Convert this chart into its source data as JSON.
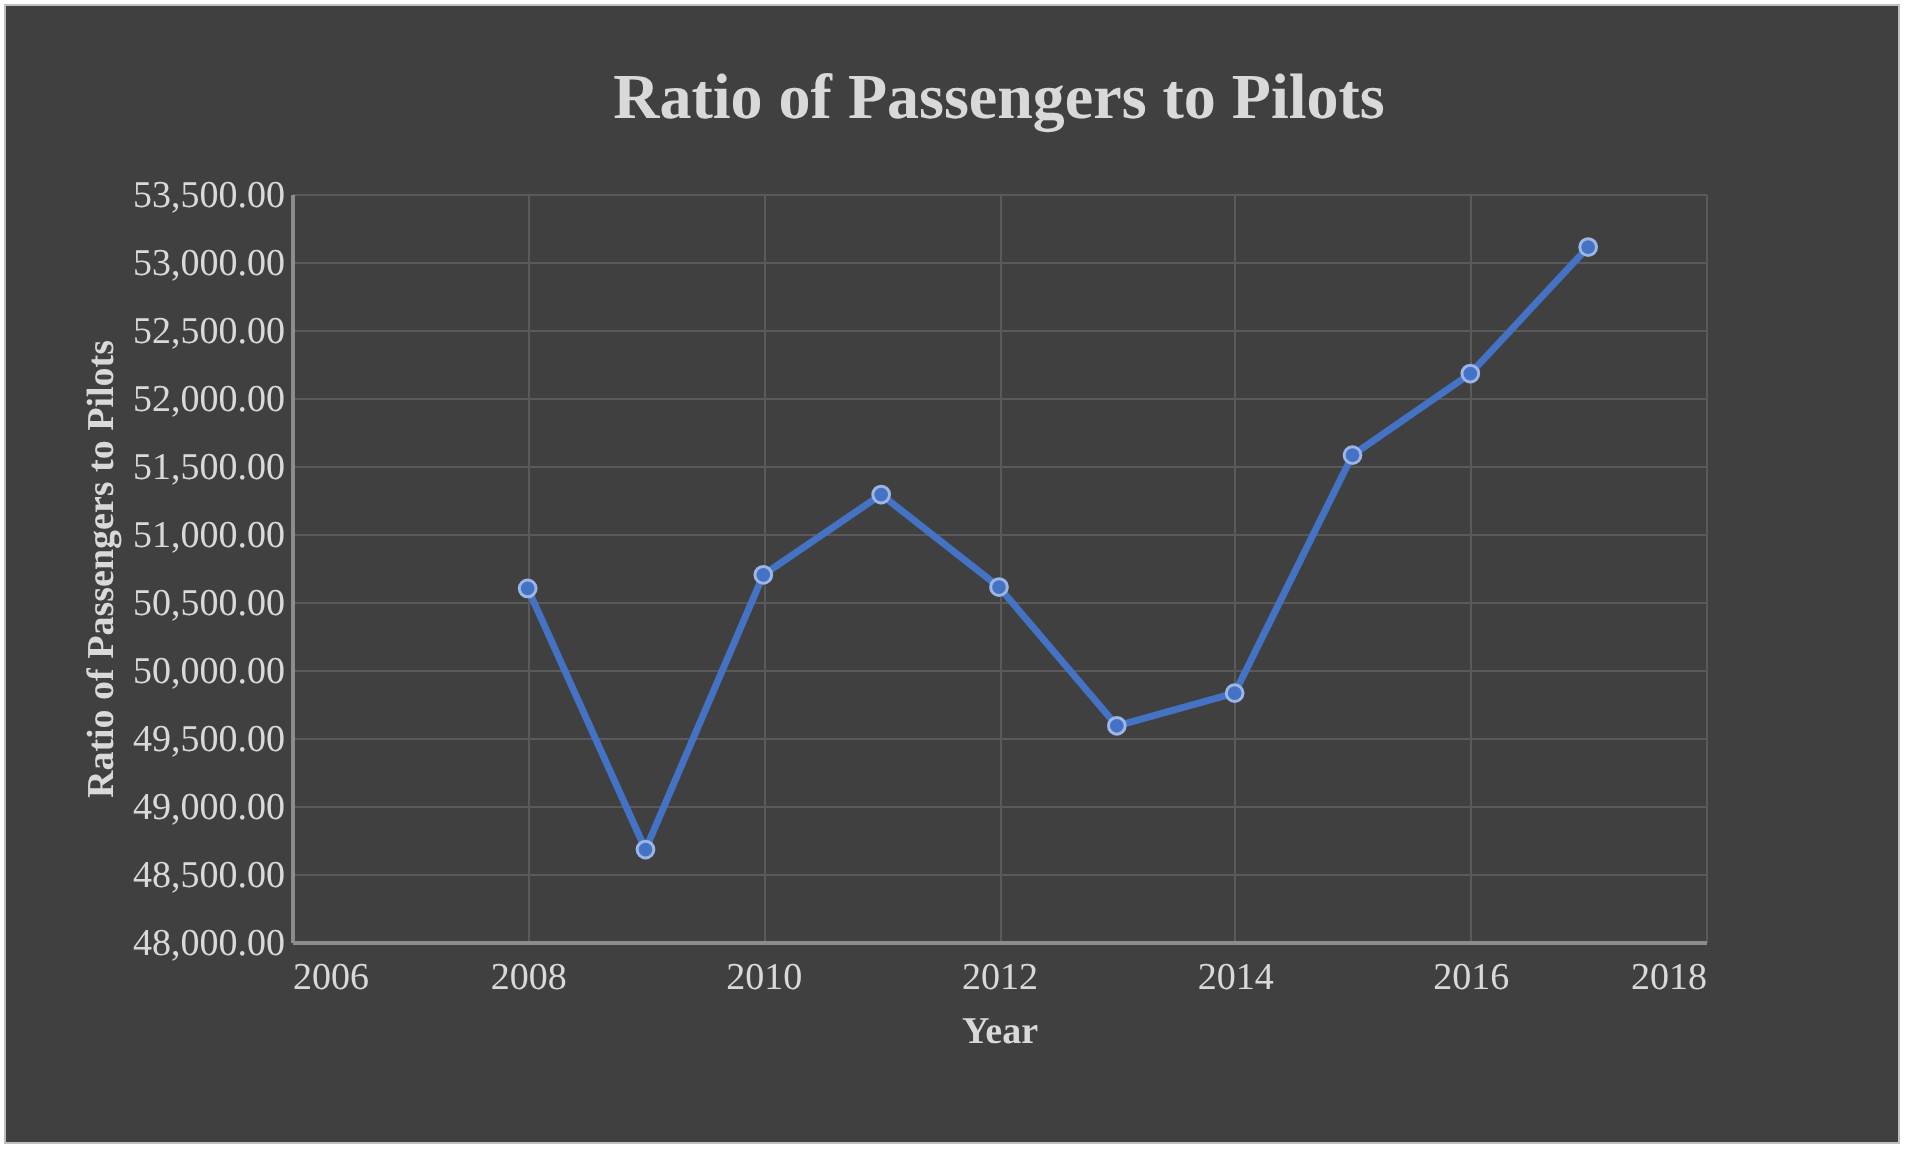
{
  "chart_data": {
    "type": "line",
    "title": "Ratio of Passengers to Pilots",
    "xlabel": "Year",
    "ylabel": "Ratio of Passengers to Pilots",
    "x": [
      2008,
      2009,
      2010,
      2011,
      2012,
      2013,
      2014,
      2015,
      2016,
      2017
    ],
    "series": [
      {
        "color": "#4472c4",
        "values": [
          50600,
          48680,
          50700,
          51290,
          50610,
          49590,
          49830,
          51580,
          52180,
          53110
        ]
      }
    ],
    "xlim": [
      2006,
      2018
    ],
    "xticks": [
      2006,
      2008,
      2010,
      2012,
      2014,
      2016,
      2018
    ],
    "ylim": [
      48000,
      53500
    ],
    "yticks": [
      {
        "value": 48000,
        "label": "48,000.00"
      },
      {
        "value": 48500,
        "label": "48,500.00"
      },
      {
        "value": 49000,
        "label": "49,000.00"
      },
      {
        "value": 49500,
        "label": "49,500.00"
      },
      {
        "value": 50000,
        "label": "50,000.00"
      },
      {
        "value": 50500,
        "label": "50,500.00"
      },
      {
        "value": 51000,
        "label": "51,000.00"
      },
      {
        "value": 51500,
        "label": "51,500.00"
      },
      {
        "value": 52000,
        "label": "52,000.00"
      },
      {
        "value": 52500,
        "label": "52,500.00"
      },
      {
        "value": 53000,
        "label": "53,000.00"
      },
      {
        "value": 53500,
        "label": "53,500.00"
      }
    ],
    "grid": true,
    "marker": "circle",
    "line_style": "solid"
  }
}
